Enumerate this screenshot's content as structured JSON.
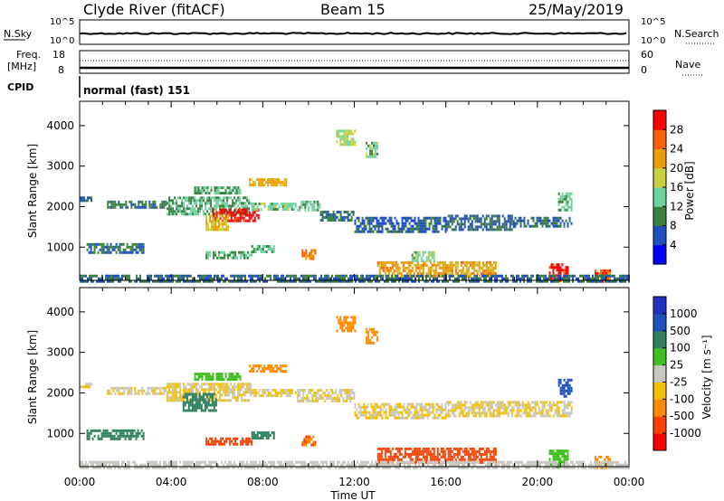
{
  "header": {
    "station": "Clyde River (fitACF)",
    "beam": "Beam 15",
    "date": "25/May/2019"
  },
  "top_panels": {
    "nsky_label": "N.Sky",
    "nsky_ticks": [
      "10^5",
      "10^0"
    ],
    "nsearch_label": "N.Search",
    "nsearch_ticks": [
      "10^5",
      "10^0"
    ],
    "freq_label_lines": [
      "Freq.",
      "[MHz]"
    ],
    "freq_ticks": [
      "18",
      "8"
    ],
    "nave_label": "Nave",
    "nave_ticks": [
      "60",
      "0"
    ],
    "cpid_label": "CPID",
    "cpid_value": "normal (fast) 151"
  },
  "chart_data": [
    {
      "type": "heatmap",
      "name": "power",
      "ylabel": "Slant Range [km]",
      "xlabel": "Time UT",
      "x_ticks": [
        "00:00",
        "04:00",
        "08:00",
        "12:00",
        "16:00",
        "20:00",
        "00:00"
      ],
      "x_range_hours": [
        0,
        24
      ],
      "y_ticks": [
        1000,
        2000,
        3000,
        4000
      ],
      "ylim": [
        180,
        4600
      ],
      "colorbar_label": "Power [dB]",
      "colorbar_ticks": [
        "28",
        "24",
        "20",
        "16",
        "12",
        "8",
        "4"
      ],
      "colorbar_colors": [
        "#0000ff",
        "#2050c0",
        "#3a8040",
        "#6fd0a0",
        "#c8d040",
        "#e8a000",
        "#ff6000",
        "#ff0000"
      ],
      "colorbar_range": [
        0,
        32
      ],
      "echo_regions": [
        {
          "t": [
            0.0,
            0.5
          ],
          "r": [
            2150,
            2250
          ],
          "v": 8
        },
        {
          "t": [
            1.2,
            3.8
          ],
          "r": [
            1950,
            2150
          ],
          "v": 9
        },
        {
          "t": [
            3.8,
            7.5
          ],
          "r": [
            1800,
            2250
          ],
          "v": 12
        },
        {
          "t": [
            5.8,
            7.8
          ],
          "r": [
            1650,
            1950
          ],
          "v": 30
        },
        {
          "t": [
            5.5,
            6.5
          ],
          "r": [
            1450,
            1800
          ],
          "v": 20
        },
        {
          "t": [
            7.5,
            9.4
          ],
          "r": [
            1900,
            2100
          ],
          "v": 14
        },
        {
          "t": [
            9.5,
            10.5
          ],
          "r": [
            1900,
            2150
          ],
          "v": 13
        },
        {
          "t": [
            10.5,
            12.0
          ],
          "r": [
            1650,
            1900
          ],
          "v": 9
        },
        {
          "t": [
            12.0,
            16.0
          ],
          "r": [
            1400,
            1750
          ],
          "v": 7
        },
        {
          "t": [
            16.0,
            19.0
          ],
          "r": [
            1450,
            1800
          ],
          "v": 7
        },
        {
          "t": [
            19.0,
            21.5
          ],
          "r": [
            1500,
            1750
          ],
          "v": 8
        },
        {
          "t": [
            7.4,
            9.0
          ],
          "r": [
            2500,
            2700
          ],
          "v": 21
        },
        {
          "t": [
            5.0,
            7.0
          ],
          "r": [
            2350,
            2500
          ],
          "v": 12
        },
        {
          "t": [
            0.3,
            2.8
          ],
          "r": [
            850,
            1100
          ],
          "v": 9
        },
        {
          "t": [
            5.5,
            7.5
          ],
          "r": [
            700,
            900
          ],
          "v": 12
        },
        {
          "t": [
            7.5,
            8.5
          ],
          "r": [
            850,
            1050
          ],
          "v": 13
        },
        {
          "t": [
            9.7,
            10.3
          ],
          "r": [
            700,
            950
          ],
          "v": 24
        },
        {
          "t": [
            13.0,
            18.2
          ],
          "r": [
            250,
            650
          ],
          "v": 22
        },
        {
          "t": [
            14.5,
            15.5
          ],
          "r": [
            650,
            900
          ],
          "v": 14
        },
        {
          "t": [
            11.2,
            12.0
          ],
          "r": [
            3500,
            3900
          ],
          "v": 17
        },
        {
          "t": [
            12.5,
            13.0
          ],
          "r": [
            3200,
            3600
          ],
          "v": 14
        },
        {
          "t": [
            20.5,
            21.3
          ],
          "r": [
            150,
            600
          ],
          "v": 30
        },
        {
          "t": [
            22.5,
            23.2
          ],
          "r": [
            150,
            450
          ],
          "v": 26
        },
        {
          "t": [
            20.9,
            21.5
          ],
          "r": [
            1900,
            2350
          ],
          "v": 13
        },
        {
          "t": [
            0.0,
            24.0
          ],
          "r": [
            180,
            320
          ],
          "v": 8
        }
      ]
    },
    {
      "type": "heatmap",
      "name": "velocity",
      "ylabel": "Slant Range [km]",
      "xlabel": "Time UT",
      "x_ticks": [
        "00:00",
        "04:00",
        "08:00",
        "12:00",
        "16:00",
        "20:00",
        "00:00"
      ],
      "x_range_hours": [
        0,
        24
      ],
      "y_ticks": [
        1000,
        2000,
        3000,
        4000
      ],
      "ylim": [
        180,
        4600
      ],
      "colorbar_label": "Velocity [m s⁻¹]",
      "colorbar_ticks": [
        "1000",
        "500",
        "100",
        "25",
        "-25",
        "-100",
        "-500",
        "-1000"
      ],
      "colorbar_colors": [
        "#ff0000",
        "#ff4000",
        "#ff8a00",
        "#f2c000",
        "#c8c8c0",
        "#40c020",
        "#308060",
        "#2050c0",
        "#2030c0"
      ],
      "echo_regions": [
        {
          "t": [
            0.0,
            0.5
          ],
          "r": [
            2150,
            2250
          ],
          "v": 0
        },
        {
          "t": [
            1.2,
            3.8
          ],
          "r": [
            1950,
            2150
          ],
          "v": 0
        },
        {
          "t": [
            3.8,
            7.5
          ],
          "r": [
            1800,
            2250
          ],
          "v": 0
        },
        {
          "t": [
            4.5,
            6.0
          ],
          "r": [
            1550,
            2000
          ],
          "v": 120
        },
        {
          "t": [
            7.5,
            9.4
          ],
          "r": [
            1900,
            2100
          ],
          "v": 0
        },
        {
          "t": [
            9.5,
            12.0
          ],
          "r": [
            1800,
            2100
          ],
          "v": 0
        },
        {
          "t": [
            12.0,
            16.0
          ],
          "r": [
            1400,
            1750
          ],
          "v": 0
        },
        {
          "t": [
            16.0,
            21.5
          ],
          "r": [
            1450,
            1800
          ],
          "v": 0
        },
        {
          "t": [
            7.4,
            9.0
          ],
          "r": [
            2500,
            2700
          ],
          "v": -80
        },
        {
          "t": [
            5.0,
            7.0
          ],
          "r": [
            2350,
            2500
          ],
          "v": 40
        },
        {
          "t": [
            0.3,
            2.8
          ],
          "r": [
            850,
            1100
          ],
          "v": 300
        },
        {
          "t": [
            5.5,
            7.5
          ],
          "r": [
            700,
            900
          ],
          "v": -300
        },
        {
          "t": [
            7.5,
            8.5
          ],
          "r": [
            850,
            1050
          ],
          "v": 300
        },
        {
          "t": [
            9.7,
            10.3
          ],
          "r": [
            700,
            950
          ],
          "v": -100
        },
        {
          "t": [
            13.0,
            18.2
          ],
          "r": [
            250,
            650
          ],
          "v": -300
        },
        {
          "t": [
            11.2,
            12.0
          ],
          "r": [
            3500,
            3900
          ],
          "v": -80
        },
        {
          "t": [
            12.5,
            13.0
          ],
          "r": [
            3200,
            3600
          ],
          "v": -60
        },
        {
          "t": [
            20.5,
            21.3
          ],
          "r": [
            150,
            600
          ],
          "v": 80
        },
        {
          "t": [
            22.5,
            23.2
          ],
          "r": [
            150,
            450
          ],
          "v": -60
        },
        {
          "t": [
            20.9,
            21.5
          ],
          "r": [
            1900,
            2350
          ],
          "v": 700
        },
        {
          "t": [
            0.0,
            24.0
          ],
          "r": [
            180,
            320
          ],
          "v": 10
        }
      ]
    }
  ]
}
